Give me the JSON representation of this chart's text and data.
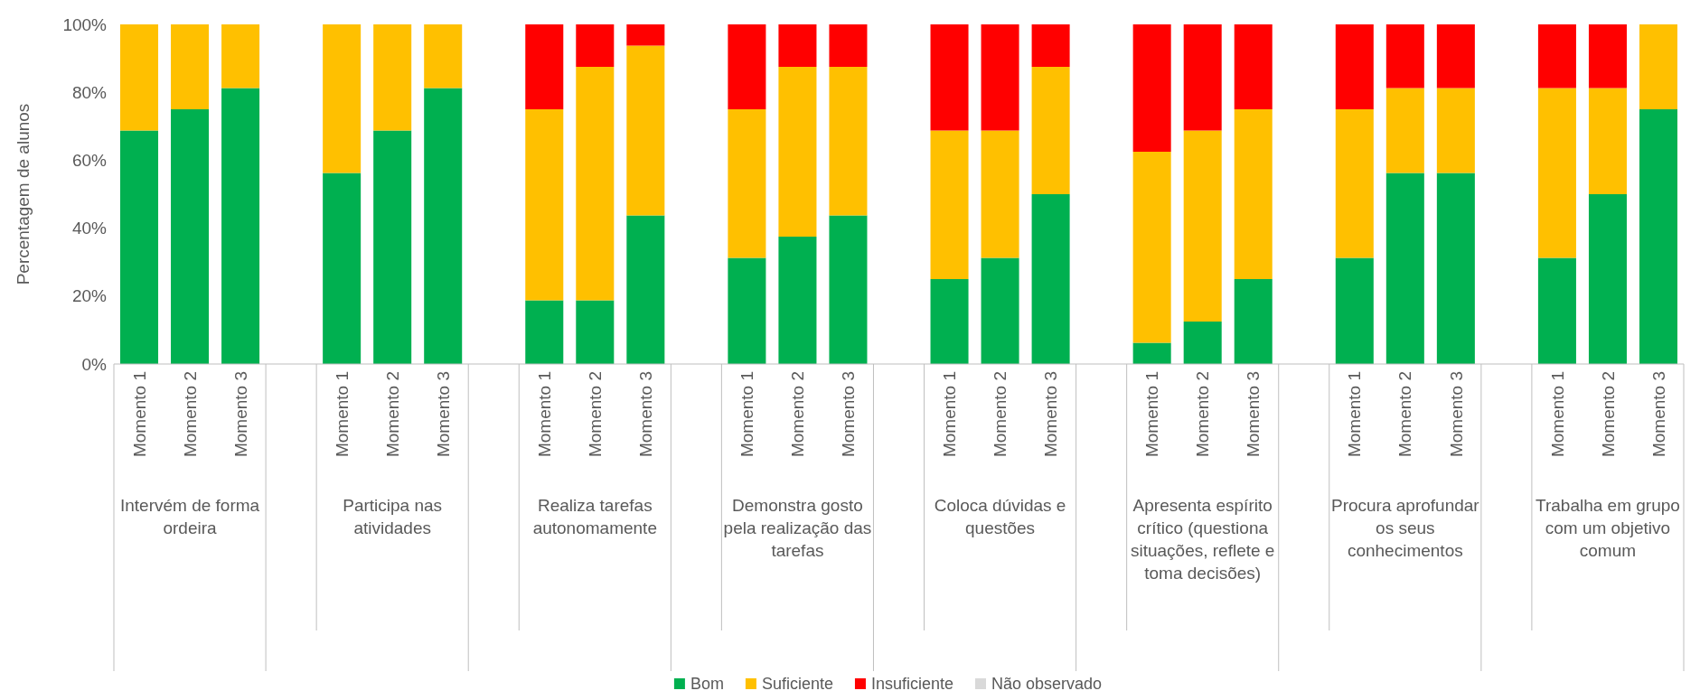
{
  "chart_data": {
    "type": "bar",
    "stacked": true,
    "ylabel": "Percentagem de alunos",
    "categories": [
      "Momento 1",
      "Momento 2",
      "Momento 3",
      "Momento 1",
      "Momento 2",
      "Momento 3",
      "Momento 1",
      "Momento 2",
      "Momento 3",
      "Momento 1",
      "Momento 2",
      "Momento 3",
      "Momento 1",
      "Momento 2",
      "Momento 3",
      "Momento 1",
      "Momento 2",
      "Momento 3",
      "Momento 1",
      "Momento 2",
      "Momento 3",
      "Momento 1",
      "Momento 2",
      "Momento 3"
    ],
    "annotations": [
      "Intervém de forma ordeira",
      "Participa nas atividades",
      "Realiza tarefas autonomamente",
      "Demonstra gosto pela realização das tarefas",
      "Coloca dúvidas e questões",
      "Apresenta espírito crítico (questiona situações, reflete e toma decisões)",
      "Procura aprofundar os seus conhecimentos",
      "Trabalha em grupo com um objetivo comum"
    ],
    "series": [
      {
        "name": "Bom",
        "color": "#00b050",
        "values": [
          68.75,
          75,
          81.25,
          56.25,
          68.75,
          81.25,
          18.75,
          18.75,
          43.75,
          31.25,
          37.5,
          43.75,
          25,
          31.25,
          50,
          6.25,
          12.5,
          25,
          31.25,
          56.25,
          56.25,
          31.25,
          50,
          75
        ]
      },
      {
        "name": "Suficiente",
        "color": "#ffc000",
        "values": [
          31.25,
          25,
          18.75,
          43.75,
          31.25,
          18.75,
          56.25,
          68.75,
          50,
          43.75,
          50,
          43.75,
          43.75,
          37.5,
          37.5,
          56.25,
          56.25,
          50,
          43.75,
          25,
          25,
          50,
          31.25,
          25
        ]
      },
      {
        "name": "Insuficiente",
        "color": "#ff0000",
        "values": [
          0,
          0,
          0,
          0,
          0,
          0,
          25,
          12.5,
          6.25,
          25,
          12.5,
          12.5,
          31.25,
          31.25,
          12.5,
          37.5,
          31.25,
          25,
          25,
          18.75,
          18.75,
          18.75,
          18.75,
          0
        ]
      },
      {
        "name": "Não observado",
        "color": "#d9d9d9",
        "values": [
          0,
          0,
          0,
          0,
          0,
          0,
          0,
          0,
          0,
          0,
          0,
          0,
          0,
          0,
          0,
          0,
          0,
          0,
          0,
          0,
          0,
          0,
          0,
          0
        ]
      }
    ],
    "ylim": [
      0,
      100
    ],
    "yticks": [
      {
        "value": 0,
        "label": "0%"
      },
      {
        "value": 20,
        "label": "20%"
      },
      {
        "value": 40,
        "label": "40%"
      },
      {
        "value": 60,
        "label": "60%"
      },
      {
        "value": 80,
        "label": "80%"
      },
      {
        "value": 100,
        "label": "100%"
      }
    ],
    "grid": false,
    "legend": "bottom"
  }
}
